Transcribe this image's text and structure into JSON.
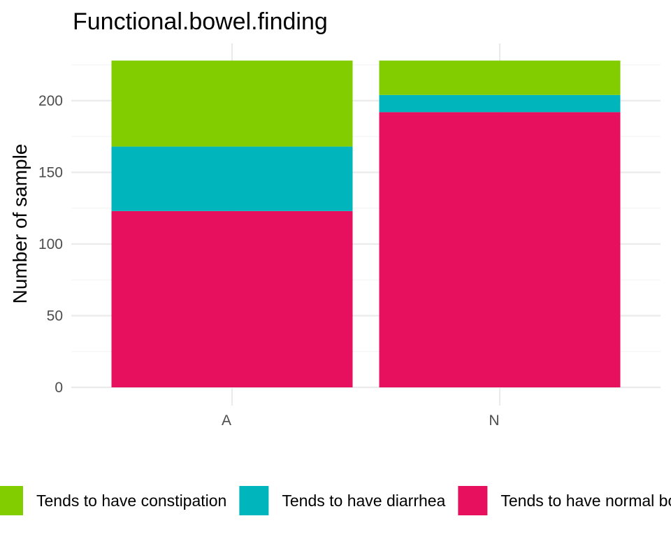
{
  "chart_data": {
    "type": "bar",
    "stacked": true,
    "title": "Functional.bowel.finding",
    "xlabel": "",
    "ylabel": "Number of sample",
    "categories": [
      "A",
      "N"
    ],
    "ylim": [
      0,
      228
    ],
    "yticks": [
      0,
      50,
      100,
      150,
      200
    ],
    "grid": true,
    "legend_position": "bottom",
    "series": [
      {
        "name": "Tends to have normal bowel movements",
        "color": "#e6105f",
        "values": [
          123,
          192
        ]
      },
      {
        "name": "Tends to have diarrhea",
        "color": "#00b5bc",
        "values": [
          45,
          12
        ]
      },
      {
        "name": "Tends to have constipation",
        "color": "#82cd00",
        "values": [
          60,
          24
        ]
      }
    ],
    "legend_order": [
      "Tends to have constipation",
      "Tends to have diarrhea",
      "Tends to have normal bowel movements"
    ]
  }
}
